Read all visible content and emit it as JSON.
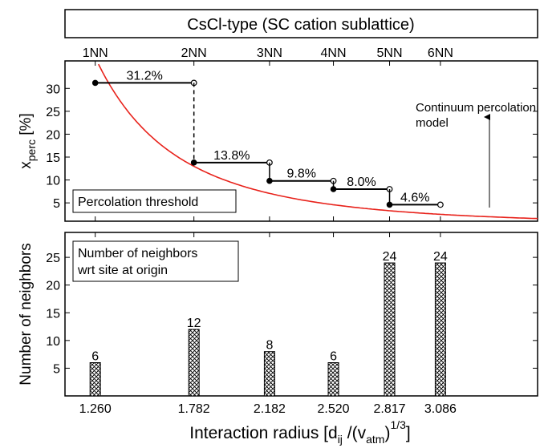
{
  "header": {
    "title": "CsCl-type (SC cation sublattice)"
  },
  "top_axis": {
    "labels": [
      "1NN",
      "2NN",
      "3NN",
      "4NN",
      "5NN",
      "6NN"
    ]
  },
  "x_axis": {
    "label_main": "Interaction radius [d",
    "label_sub1": "ij",
    "label_mid": " /(v",
    "label_sub2": "atm",
    "label_close": ")",
    "label_sup": "1/3",
    "label_end": "]"
  },
  "chart_data": [
    {
      "type": "line",
      "title": "",
      "ylabel_main": "x",
      "ylabel_sub": "perc",
      "ylabel_unit": " [%]",
      "xlim": [
        1.1,
        3.6
      ],
      "ylim": [
        1,
        36
      ],
      "yticks": [
        5,
        10,
        15,
        20,
        25,
        30
      ],
      "steps": [
        {
          "x_start": 1.26,
          "x_end": 1.782,
          "y": 31.2,
          "label": "31.2%"
        },
        {
          "x_start": 1.782,
          "x_end": 2.182,
          "y": 13.8,
          "label": "13.8%"
        },
        {
          "x_start": 2.182,
          "x_end": 2.52,
          "y": 9.8,
          "label": "9.8%"
        },
        {
          "x_start": 2.52,
          "x_end": 2.817,
          "y": 8.0,
          "label": "8.0%"
        },
        {
          "x_start": 2.817,
          "x_end": 3.086,
          "y": 4.6,
          "label": "4.6%"
        }
      ],
      "curve": {
        "name": "Continuum percolation model",
        "color": "#e8221b",
        "k": 73.5
      },
      "annotations": {
        "box_label": "Percolation threshold",
        "arrow_label_line1": "Continuum percolation",
        "arrow_label_line2": "model"
      }
    },
    {
      "type": "bar",
      "title": "",
      "ylabel": "Number of neighbors",
      "xlim": [
        1.1,
        3.6
      ],
      "ylim": [
        0,
        29.5
      ],
      "yticks": [
        5,
        10,
        15,
        20,
        25
      ],
      "categories": [
        "1.260",
        "1.782",
        "2.182",
        "2.520",
        "2.817",
        "3.086"
      ],
      "x": [
        1.26,
        1.782,
        2.182,
        2.52,
        2.817,
        3.086
      ],
      "values": [
        6,
        12,
        8,
        6,
        24,
        24
      ],
      "annotations": {
        "box_line1": "Number of neighbors",
        "box_line2": "wrt site at origin"
      }
    }
  ]
}
